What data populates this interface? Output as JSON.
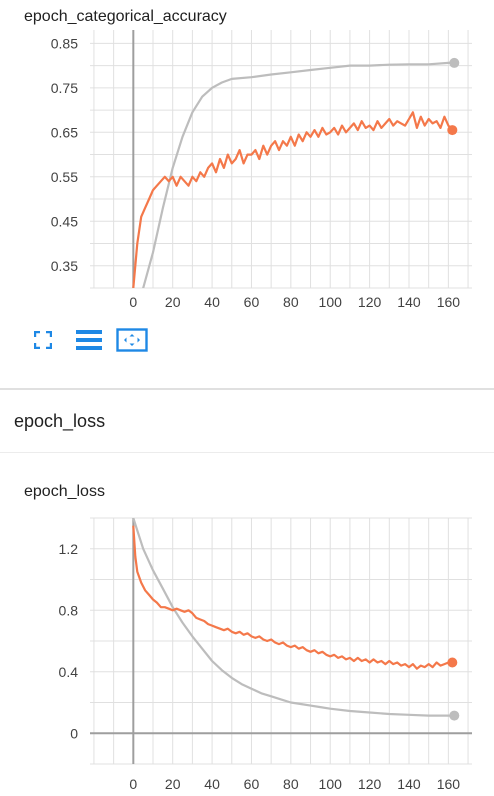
{
  "chart1": {
    "title": "epoch_categorical_accuracy",
    "controls": [
      "expand",
      "toggle-log-scale",
      "fit-domain"
    ]
  },
  "section2": {
    "title": "epoch_loss"
  },
  "chart2": {
    "title": "epoch_loss"
  },
  "colors": {
    "train": "#f4784a",
    "validation": "#bdbdbd",
    "grid": "#e0e0e0",
    "axis": "#9e9e9e",
    "icon_accent": "#1e88e5"
  },
  "chart_data": [
    {
      "type": "line",
      "title": "epoch_categorical_accuracy",
      "xlabel": "",
      "ylabel": "",
      "xlim": [
        -22,
        172
      ],
      "ylim": [
        0.3,
        0.88
      ],
      "x_ticks": [
        0,
        20,
        40,
        60,
        80,
        100,
        120,
        140,
        160
      ],
      "y_ticks": [
        0.35,
        0.45,
        0.55,
        0.65,
        0.75,
        0.85
      ],
      "y_tick_labels": [
        "0.35",
        "0.45",
        "0.55",
        "0.65",
        "0.75",
        "0.85"
      ],
      "grid": true,
      "series": [
        {
          "color": "#bdbdbd",
          "points": [
            [
              0,
              0.26
            ],
            [
              5,
              0.3
            ],
            [
              10,
              0.38
            ],
            [
              15,
              0.48
            ],
            [
              20,
              0.57
            ],
            [
              25,
              0.64
            ],
            [
              30,
              0.695
            ],
            [
              35,
              0.73
            ],
            [
              40,
              0.75
            ],
            [
              45,
              0.762
            ],
            [
              50,
              0.77
            ],
            [
              60,
              0.774
            ],
            [
              70,
              0.78
            ],
            [
              80,
              0.785
            ],
            [
              90,
              0.79
            ],
            [
              100,
              0.795
            ],
            [
              110,
              0.8
            ],
            [
              120,
              0.8
            ],
            [
              130,
              0.802
            ],
            [
              140,
              0.803
            ],
            [
              150,
              0.803
            ],
            [
              160,
              0.806
            ],
            [
              163,
              0.806
            ]
          ],
          "end_marker": true
        },
        {
          "color": "#f4784a",
          "points": [
            [
              0,
              0.3
            ],
            [
              2,
              0.4
            ],
            [
              4,
              0.46
            ],
            [
              6,
              0.48
            ],
            [
              8,
              0.5
            ],
            [
              10,
              0.52
            ],
            [
              12,
              0.53
            ],
            [
              14,
              0.54
            ],
            [
              16,
              0.55
            ],
            [
              18,
              0.54
            ],
            [
              20,
              0.55
            ],
            [
              22,
              0.53
            ],
            [
              24,
              0.55
            ],
            [
              26,
              0.54
            ],
            [
              28,
              0.53
            ],
            [
              30,
              0.55
            ],
            [
              32,
              0.54
            ],
            [
              34,
              0.56
            ],
            [
              36,
              0.55
            ],
            [
              38,
              0.57
            ],
            [
              40,
              0.58
            ],
            [
              42,
              0.56
            ],
            [
              44,
              0.59
            ],
            [
              46,
              0.57
            ],
            [
              48,
              0.6
            ],
            [
              50,
              0.58
            ],
            [
              52,
              0.59
            ],
            [
              54,
              0.61
            ],
            [
              56,
              0.58
            ],
            [
              58,
              0.6
            ],
            [
              60,
              0.6
            ],
            [
              62,
              0.61
            ],
            [
              64,
              0.59
            ],
            [
              66,
              0.62
            ],
            [
              68,
              0.6
            ],
            [
              70,
              0.62
            ],
            [
              72,
              0.63
            ],
            [
              74,
              0.61
            ],
            [
              76,
              0.63
            ],
            [
              78,
              0.62
            ],
            [
              80,
              0.64
            ],
            [
              82,
              0.62
            ],
            [
              84,
              0.645
            ],
            [
              86,
              0.63
            ],
            [
              88,
              0.65
            ],
            [
              90,
              0.64
            ],
            [
              92,
              0.655
            ],
            [
              94,
              0.64
            ],
            [
              96,
              0.66
            ],
            [
              98,
              0.645
            ],
            [
              100,
              0.65
            ],
            [
              102,
              0.66
            ],
            [
              104,
              0.645
            ],
            [
              106,
              0.665
            ],
            [
              108,
              0.65
            ],
            [
              110,
              0.66
            ],
            [
              112,
              0.67
            ],
            [
              114,
              0.655
            ],
            [
              116,
              0.675
            ],
            [
              118,
              0.66
            ],
            [
              120,
              0.665
            ],
            [
              122,
              0.655
            ],
            [
              124,
              0.675
            ],
            [
              126,
              0.66
            ],
            [
              128,
              0.67
            ],
            [
              130,
              0.68
            ],
            [
              132,
              0.665
            ],
            [
              134,
              0.675
            ],
            [
              136,
              0.67
            ],
            [
              138,
              0.665
            ],
            [
              140,
              0.68
            ],
            [
              142,
              0.695
            ],
            [
              144,
              0.66
            ],
            [
              146,
              0.685
            ],
            [
              148,
              0.665
            ],
            [
              150,
              0.68
            ],
            [
              152,
              0.67
            ],
            [
              154,
              0.675
            ],
            [
              156,
              0.66
            ],
            [
              158,
              0.685
            ],
            [
              160,
              0.665
            ],
            [
              162,
              0.655
            ]
          ],
          "end_marker": true
        }
      ]
    },
    {
      "type": "line",
      "title": "epoch_loss",
      "xlabel": "",
      "ylabel": "",
      "xlim": [
        -22,
        172
      ],
      "ylim": [
        -0.2,
        1.4
      ],
      "x_ticks": [
        0,
        20,
        40,
        60,
        80,
        100,
        120,
        140,
        160
      ],
      "y_ticks": [
        0,
        0.4,
        0.8,
        1.2
      ],
      "y_tick_labels": [
        "0",
        "0.4",
        "0.8",
        "1.2"
      ],
      "grid": true,
      "series": [
        {
          "color": "#bdbdbd",
          "points": [
            [
              0,
              1.4
            ],
            [
              5,
              1.2
            ],
            [
              10,
              1.06
            ],
            [
              15,
              0.94
            ],
            [
              20,
              0.82
            ],
            [
              25,
              0.72
            ],
            [
              30,
              0.63
            ],
            [
              35,
              0.55
            ],
            [
              40,
              0.47
            ],
            [
              45,
              0.41
            ],
            [
              50,
              0.36
            ],
            [
              55,
              0.32
            ],
            [
              60,
              0.29
            ],
            [
              65,
              0.26
            ],
            [
              70,
              0.24
            ],
            [
              75,
              0.22
            ],
            [
              80,
              0.2
            ],
            [
              85,
              0.19
            ],
            [
              90,
              0.18
            ],
            [
              95,
              0.17
            ],
            [
              100,
              0.16
            ],
            [
              110,
              0.145
            ],
            [
              120,
              0.135
            ],
            [
              130,
              0.125
            ],
            [
              140,
              0.12
            ],
            [
              150,
              0.115
            ],
            [
              160,
              0.115
            ],
            [
              163,
              0.115
            ]
          ],
          "end_marker": true
        },
        {
          "color": "#f4784a",
          "points": [
            [
              0,
              1.35
            ],
            [
              1,
              1.15
            ],
            [
              2,
              1.05
            ],
            [
              4,
              0.98
            ],
            [
              6,
              0.93
            ],
            [
              8,
              0.9
            ],
            [
              10,
              0.87
            ],
            [
              12,
              0.85
            ],
            [
              14,
              0.82
            ],
            [
              16,
              0.82
            ],
            [
              18,
              0.81
            ],
            [
              20,
              0.8
            ],
            [
              22,
              0.81
            ],
            [
              24,
              0.8
            ],
            [
              26,
              0.79
            ],
            [
              28,
              0.8
            ],
            [
              30,
              0.78
            ],
            [
              32,
              0.75
            ],
            [
              34,
              0.74
            ],
            [
              36,
              0.73
            ],
            [
              38,
              0.71
            ],
            [
              40,
              0.7
            ],
            [
              42,
              0.69
            ],
            [
              44,
              0.68
            ],
            [
              46,
              0.67
            ],
            [
              48,
              0.68
            ],
            [
              50,
              0.66
            ],
            [
              52,
              0.65
            ],
            [
              54,
              0.66
            ],
            [
              56,
              0.64
            ],
            [
              58,
              0.65
            ],
            [
              60,
              0.63
            ],
            [
              62,
              0.62
            ],
            [
              64,
              0.63
            ],
            [
              66,
              0.61
            ],
            [
              68,
              0.6
            ],
            [
              70,
              0.61
            ],
            [
              72,
              0.59
            ],
            [
              74,
              0.58
            ],
            [
              76,
              0.59
            ],
            [
              78,
              0.57
            ],
            [
              80,
              0.56
            ],
            [
              82,
              0.57
            ],
            [
              84,
              0.55
            ],
            [
              86,
              0.56
            ],
            [
              88,
              0.54
            ],
            [
              90,
              0.53
            ],
            [
              92,
              0.54
            ],
            [
              94,
              0.52
            ],
            [
              96,
              0.53
            ],
            [
              98,
              0.51
            ],
            [
              100,
              0.5
            ],
            [
              102,
              0.51
            ],
            [
              104,
              0.49
            ],
            [
              106,
              0.5
            ],
            [
              108,
              0.48
            ],
            [
              110,
              0.49
            ],
            [
              112,
              0.47
            ],
            [
              114,
              0.49
            ],
            [
              116,
              0.47
            ],
            [
              118,
              0.48
            ],
            [
              120,
              0.46
            ],
            [
              122,
              0.48
            ],
            [
              124,
              0.46
            ],
            [
              126,
              0.47
            ],
            [
              128,
              0.45
            ],
            [
              130,
              0.47
            ],
            [
              132,
              0.45
            ],
            [
              134,
              0.46
            ],
            [
              136,
              0.44
            ],
            [
              138,
              0.45
            ],
            [
              140,
              0.43
            ],
            [
              142,
              0.45
            ],
            [
              144,
              0.42
            ],
            [
              146,
              0.44
            ],
            [
              148,
              0.43
            ],
            [
              150,
              0.45
            ],
            [
              152,
              0.43
            ],
            [
              154,
              0.46
            ],
            [
              156,
              0.44
            ],
            [
              158,
              0.45
            ],
            [
              160,
              0.46
            ],
            [
              162,
              0.46
            ]
          ],
          "end_marker": true
        }
      ]
    }
  ]
}
